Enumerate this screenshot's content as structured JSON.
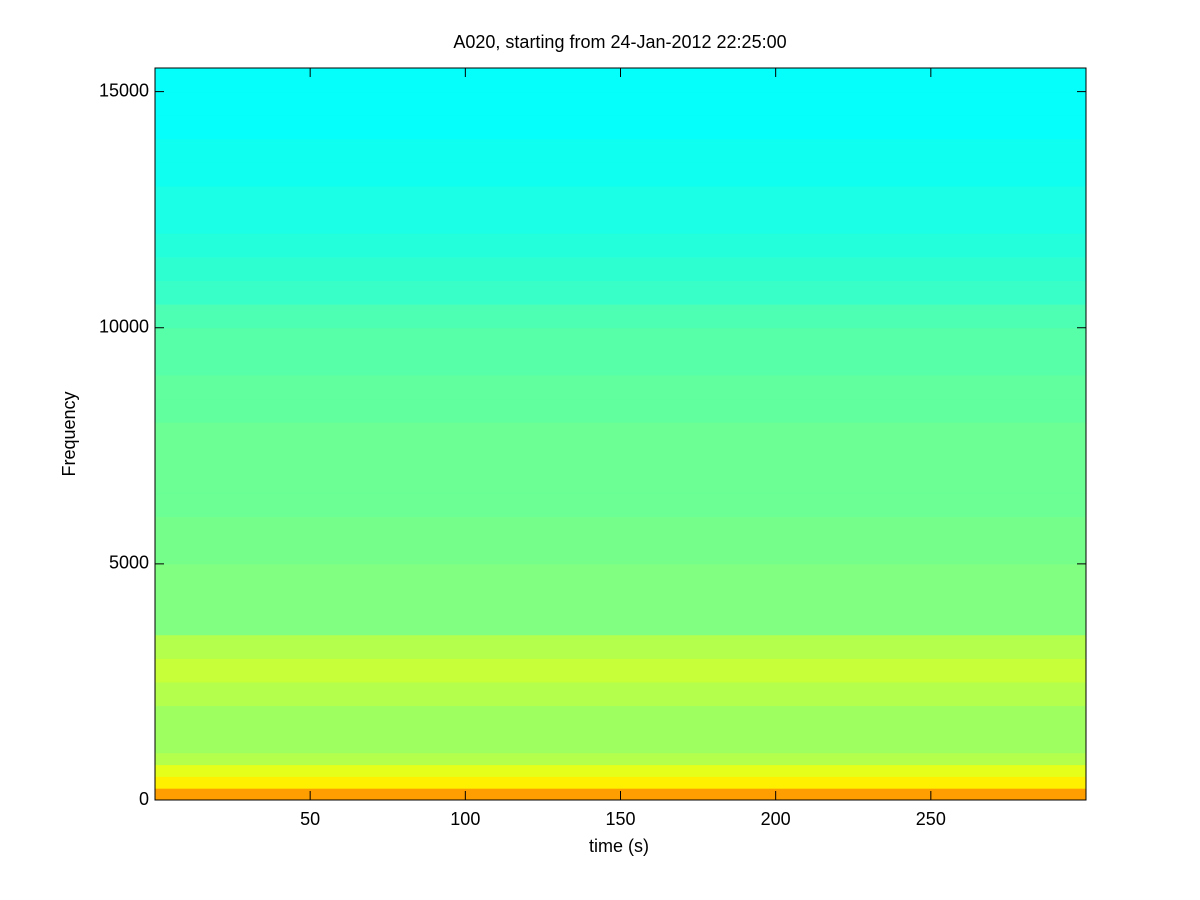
{
  "chart_data": {
    "type": "heatmap",
    "title": "A020, starting from 24-Jan-2012 22:25:00",
    "x_label": "time (s)",
    "y_label": "Frequency",
    "colormap": "jet",
    "y_bins": [
      0,
      250,
      500,
      750,
      1000,
      1500,
      2000,
      2500,
      3000,
      3500,
      4000,
      4500,
      5000,
      5500,
      6000,
      6500,
      7000,
      7500,
      8000,
      8500,
      9000,
      9500,
      10000,
      10500,
      11000,
      11500,
      12000,
      12500,
      13000,
      13500,
      14000,
      14500,
      15000,
      15500
    ],
    "values": [
      0.72,
      0.64,
      0.6,
      0.55,
      0.53,
      0.53,
      0.55,
      0.57,
      0.55,
      0.5,
      0.5,
      0.5,
      0.49,
      0.49,
      0.48,
      0.48,
      0.48,
      0.48,
      0.47,
      0.47,
      0.46,
      0.46,
      0.45,
      0.43,
      0.42,
      0.41,
      0.4,
      0.4,
      0.39,
      0.39,
      0.38,
      0.38,
      0.38
    ],
    "xlim": [
      0,
      300
    ],
    "ylim": [
      0,
      15500
    ],
    "xticks": [
      50,
      100,
      150,
      200,
      250
    ],
    "yticks": [
      0,
      5000,
      10000,
      15000
    ]
  }
}
